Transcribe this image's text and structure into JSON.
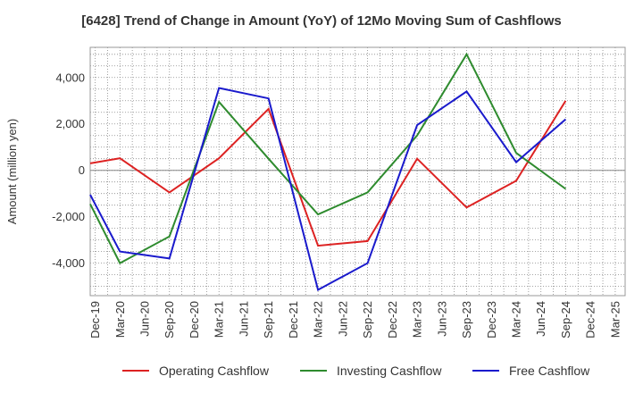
{
  "chart_data": {
    "type": "line",
    "title": "[6428]  Trend of Change in Amount (YoY) of 12Mo Moving Sum of Cashflows",
    "xlabel": "",
    "ylabel": "Amount (million yen)",
    "ylim": [
      -5400,
      5300
    ],
    "yticks": [
      -4000,
      -2000,
      0,
      2000,
      4000
    ],
    "ytick_labels": [
      "-4,000",
      "-2,000",
      "0",
      "2,000",
      "4,000"
    ],
    "categories": [
      "Dec-19",
      "Mar-20",
      "Jun-20",
      "Sep-20",
      "Dec-20",
      "Mar-21",
      "Jun-21",
      "Sep-21",
      "Dec-21",
      "Mar-22",
      "Jun-22",
      "Sep-22",
      "Dec-22",
      "Mar-23",
      "Jun-23",
      "Sep-23",
      "Dec-23",
      "Mar-24",
      "Jun-24",
      "Sep-24",
      "Dec-24",
      "Mar-25"
    ],
    "x_range": [
      -0.2,
      21.4
    ],
    "series": [
      {
        "name": "Operating Cashflow",
        "color": "#dd2222",
        "points": [
          [
            -0.2,
            300
          ],
          [
            1,
            520
          ],
          [
            3,
            -950
          ],
          [
            5,
            520
          ],
          [
            7,
            2650
          ],
          [
            9,
            -3250
          ],
          [
            11,
            -3050
          ],
          [
            13,
            500
          ],
          [
            15,
            -1600
          ],
          [
            17,
            -450
          ],
          [
            19,
            3000
          ]
        ]
      },
      {
        "name": "Investing Cashflow",
        "color": "#2e8b2e",
        "points": [
          [
            -0.2,
            -1450
          ],
          [
            1,
            -4000
          ],
          [
            3,
            -2850
          ],
          [
            5,
            2950
          ],
          [
            7,
            500
          ],
          [
            9,
            -1900
          ],
          [
            11,
            -950
          ],
          [
            13,
            1500
          ],
          [
            15,
            5000
          ],
          [
            17,
            750
          ],
          [
            19,
            -800
          ]
        ]
      },
      {
        "name": "Free Cashflow",
        "color": "#1a1acc",
        "points": [
          [
            -0.2,
            -1050
          ],
          [
            1,
            -3500
          ],
          [
            3,
            -3800
          ],
          [
            5,
            3550
          ],
          [
            7,
            3100
          ],
          [
            9,
            -5150
          ],
          [
            11,
            -4000
          ],
          [
            13,
            1950
          ],
          [
            15,
            3400
          ],
          [
            17,
            350
          ],
          [
            19,
            2200
          ]
        ]
      }
    ],
    "legend": [
      "Operating Cashflow",
      "Investing Cashflow",
      "Free Cashflow"
    ],
    "legend_position": "bottom",
    "grid": true
  }
}
